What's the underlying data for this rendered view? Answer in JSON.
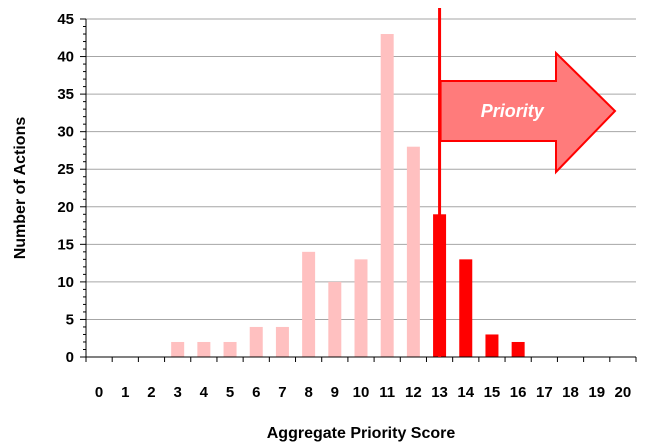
{
  "chart_data": {
    "type": "bar",
    "title": "",
    "xlabel": "Aggregate Priority Score",
    "ylabel": "Number of Actions",
    "categories": [
      "0",
      "1",
      "2",
      "3",
      "4",
      "5",
      "6",
      "7",
      "8",
      "9",
      "10",
      "11",
      "12",
      "13",
      "14",
      "15",
      "16",
      "17",
      "18",
      "19",
      "20"
    ],
    "values": [
      0,
      0,
      0,
      2,
      2,
      2,
      4,
      4,
      14,
      10,
      13,
      43,
      28,
      19,
      13,
      3,
      2,
      0,
      0,
      0,
      0
    ],
    "ylim": [
      0,
      45
    ],
    "yticks": [
      0,
      5,
      10,
      15,
      20,
      25,
      30,
      35,
      40,
      45
    ],
    "grid": true,
    "threshold": {
      "x": 13,
      "annotation": "Priority"
    },
    "colors": {
      "below_threshold": "#ffc0c0",
      "at_or_above_threshold": "#ff0000",
      "threshold_line": "#ff0000",
      "arrow_fill": "#ff7b7b",
      "arrow_stroke": "#ff0000",
      "annotation_text": "#ffffff"
    }
  }
}
